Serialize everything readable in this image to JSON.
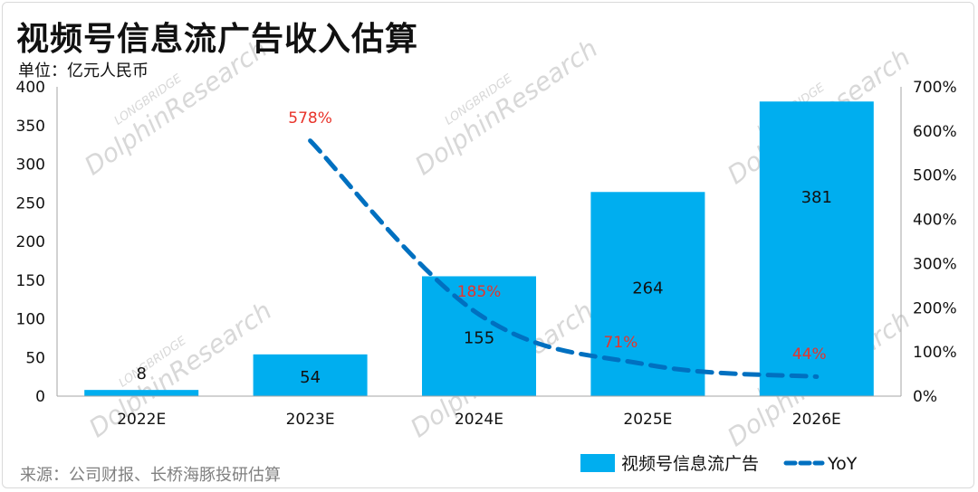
{
  "header": {
    "title": "视频号信息流广告收入估算",
    "unit": "单位：亿元人民币"
  },
  "footer": {
    "source": "来源：公司财报、长桥海豚投研估算"
  },
  "watermark": {
    "brand": "LONGBRIDGE",
    "name": "DolphinResearch"
  },
  "colors": {
    "bar": "#00AEEF",
    "line": "#0070C0",
    "yoy_label": "#E8332A"
  },
  "chart_data": {
    "type": "bar",
    "categories": [
      "2022E",
      "2023E",
      "2024E",
      "2025E",
      "2026E"
    ],
    "series": [
      {
        "name": "视频号信息流广告",
        "type": "bar",
        "axis": "left",
        "values": [
          8,
          54,
          155,
          264,
          381
        ],
        "labels": [
          "8",
          "54",
          "155",
          "264",
          "381"
        ]
      },
      {
        "name": "YoY",
        "type": "line",
        "style": "dashed",
        "axis": "right",
        "values": [
          null,
          578,
          185,
          71,
          44
        ],
        "labels": [
          "",
          "578%",
          "185%",
          "71%",
          "44%"
        ]
      }
    ],
    "y_left": {
      "min": 0,
      "max": 400,
      "ticks": [
        "0",
        "50",
        "100",
        "150",
        "200",
        "250",
        "300",
        "350",
        "400"
      ]
    },
    "y_right": {
      "min": 0,
      "max": 700,
      "ticks": [
        "0%",
        "100%",
        "200%",
        "300%",
        "400%",
        "500%",
        "600%",
        "700%"
      ]
    },
    "grid": false,
    "legend": "bottom-right"
  }
}
